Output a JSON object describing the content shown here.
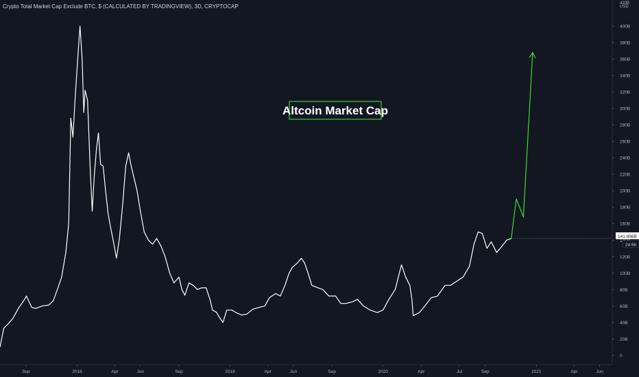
{
  "legend": "Crypto Total Market Cap Exclude BTC, $ (CALCULATED BY TRADINGVIEW), 3D, CRYPTOCAP",
  "colors": {
    "background": "#131722",
    "line": "#ffffff",
    "projection": "#3ccc2e",
    "title_border": "#3ccc2e",
    "axis_text": "#b2b5be"
  },
  "price_badge": {
    "value": "141.896B",
    "countdown": "2d 6h"
  },
  "chart_data": {
    "type": "line",
    "title": "Altcoin Market Cap",
    "ylabel": "USD",
    "ylim": [
      -8,
      420
    ],
    "y_top_partial_label": "420B",
    "y_ticks": [
      0,
      20,
      40,
      60,
      80,
      100,
      120,
      140,
      160,
      180,
      200,
      220,
      240,
      260,
      280,
      300,
      320,
      340,
      360,
      380,
      400
    ],
    "y_tick_labels": [
      "0",
      "20B",
      "40B",
      "60B",
      "80B",
      "100B",
      "120B",
      "140B",
      "160B",
      "180B",
      "200B",
      "220B",
      "240B",
      "260B",
      "280B",
      "300B",
      "320B",
      "340B",
      "360B",
      "380B",
      "400B"
    ],
    "x_ticks": [
      {
        "label": "Sep",
        "date": "2017-09-01"
      },
      {
        "label": "2018",
        "date": "2018-01-01"
      },
      {
        "label": "Apr",
        "date": "2018-04-01"
      },
      {
        "label": "Jun",
        "date": "2018-06-01"
      },
      {
        "label": "Sep",
        "date": "2018-09-01"
      },
      {
        "label": "2019",
        "date": "2019-01-01"
      },
      {
        "label": "Apr",
        "date": "2019-04-01"
      },
      {
        "label": "Jun",
        "date": "2019-06-01"
      },
      {
        "label": "Sep",
        "date": "2019-09-01"
      },
      {
        "label": "2020",
        "date": "2020-01-01"
      },
      {
        "label": "Apr",
        "date": "2020-04-01"
      },
      {
        "label": "Jul",
        "date": "2020-07-01"
      },
      {
        "label": "Sep",
        "date": "2020-09-01"
      },
      {
        "label": "2021",
        "date": "2021-01-01"
      },
      {
        "label": "Apr",
        "date": "2021-04-01"
      },
      {
        "label": "Jun",
        "date": "2021-06-01"
      }
    ],
    "xlim": [
      "2017-07-01",
      "2021-07-01"
    ],
    "series": [
      {
        "role": "history",
        "points": [
          [
            "2017-07-01",
            10
          ],
          [
            "2017-07-10",
            33
          ],
          [
            "2017-07-20",
            38
          ],
          [
            "2017-08-01",
            45
          ],
          [
            "2017-08-15",
            58
          ],
          [
            "2017-08-25",
            65
          ],
          [
            "2017-09-02",
            72
          ],
          [
            "2017-09-15",
            58
          ],
          [
            "2017-09-25",
            57
          ],
          [
            "2017-10-10",
            60
          ],
          [
            "2017-10-25",
            61
          ],
          [
            "2017-11-05",
            66
          ],
          [
            "2017-11-15",
            80
          ],
          [
            "2017-11-25",
            95
          ],
          [
            "2017-12-05",
            125
          ],
          [
            "2017-12-12",
            160
          ],
          [
            "2017-12-17",
            288
          ],
          [
            "2017-12-22",
            265
          ],
          [
            "2017-12-27",
            310
          ],
          [
            "2018-01-04",
            372
          ],
          [
            "2018-01-08",
            400
          ],
          [
            "2018-01-13",
            360
          ],
          [
            "2018-01-17",
            295
          ],
          [
            "2018-01-20",
            322
          ],
          [
            "2018-01-26",
            310
          ],
          [
            "2018-02-01",
            230
          ],
          [
            "2018-02-06",
            175
          ],
          [
            "2018-02-11",
            218
          ],
          [
            "2018-02-16",
            250
          ],
          [
            "2018-02-21",
            270
          ],
          [
            "2018-02-26",
            232
          ],
          [
            "2018-03-04",
            230
          ],
          [
            "2018-03-10",
            200
          ],
          [
            "2018-03-16",
            172
          ],
          [
            "2018-03-22",
            155
          ],
          [
            "2018-03-28",
            140
          ],
          [
            "2018-04-05",
            118
          ],
          [
            "2018-04-12",
            142
          ],
          [
            "2018-04-20",
            185
          ],
          [
            "2018-04-27",
            230
          ],
          [
            "2018-05-04",
            246
          ],
          [
            "2018-05-10",
            230
          ],
          [
            "2018-05-17",
            215
          ],
          [
            "2018-05-24",
            200
          ],
          [
            "2018-06-01",
            175
          ],
          [
            "2018-06-10",
            150
          ],
          [
            "2018-06-20",
            140
          ],
          [
            "2018-06-30",
            135
          ],
          [
            "2018-07-10",
            142
          ],
          [
            "2018-07-20",
            133
          ],
          [
            "2018-07-30",
            120
          ],
          [
            "2018-08-10",
            100
          ],
          [
            "2018-08-20",
            88
          ],
          [
            "2018-09-01",
            95
          ],
          [
            "2018-09-08",
            80
          ],
          [
            "2018-09-15",
            73
          ],
          [
            "2018-09-25",
            88
          ],
          [
            "2018-10-05",
            85
          ],
          [
            "2018-10-15",
            80
          ],
          [
            "2018-10-25",
            82
          ],
          [
            "2018-11-05",
            82
          ],
          [
            "2018-11-14",
            68
          ],
          [
            "2018-11-20",
            55
          ],
          [
            "2018-11-30",
            52
          ],
          [
            "2018-12-08",
            45
          ],
          [
            "2018-12-15",
            40
          ],
          [
            "2018-12-24",
            55
          ],
          [
            "2019-01-05",
            55
          ],
          [
            "2019-01-15",
            52
          ],
          [
            "2019-01-28",
            49
          ],
          [
            "2019-02-10",
            50
          ],
          [
            "2019-02-24",
            56
          ],
          [
            "2019-03-10",
            58
          ],
          [
            "2019-03-25",
            60
          ],
          [
            "2019-04-05",
            70
          ],
          [
            "2019-04-20",
            75
          ],
          [
            "2019-05-01",
            72
          ],
          [
            "2019-05-12",
            85
          ],
          [
            "2019-05-22",
            100
          ],
          [
            "2019-05-30",
            107
          ],
          [
            "2019-06-10",
            112
          ],
          [
            "2019-06-20",
            118
          ],
          [
            "2019-06-28",
            112
          ],
          [
            "2019-07-06",
            100
          ],
          [
            "2019-07-15",
            85
          ],
          [
            "2019-07-30",
            82
          ],
          [
            "2019-08-10",
            80
          ],
          [
            "2019-08-25",
            72
          ],
          [
            "2019-09-10",
            72
          ],
          [
            "2019-09-22",
            63
          ],
          [
            "2019-10-05",
            63
          ],
          [
            "2019-10-20",
            65
          ],
          [
            "2019-11-01",
            68
          ],
          [
            "2019-11-15",
            60
          ],
          [
            "2019-12-01",
            55
          ],
          [
            "2019-12-18",
            52
          ],
          [
            "2020-01-01",
            55
          ],
          [
            "2020-01-15",
            68
          ],
          [
            "2020-01-30",
            80
          ],
          [
            "2020-02-08",
            98
          ],
          [
            "2020-02-14",
            110
          ],
          [
            "2020-02-24",
            95
          ],
          [
            "2020-03-05",
            85
          ],
          [
            "2020-03-10",
            68
          ],
          [
            "2020-03-13",
            48
          ],
          [
            "2020-03-28",
            52
          ],
          [
            "2020-04-10",
            60
          ],
          [
            "2020-04-25",
            70
          ],
          [
            "2020-05-10",
            72
          ],
          [
            "2020-05-28",
            85
          ],
          [
            "2020-06-10",
            85
          ],
          [
            "2020-06-25",
            90
          ],
          [
            "2020-07-10",
            95
          ],
          [
            "2020-07-25",
            108
          ],
          [
            "2020-08-05",
            135
          ],
          [
            "2020-08-15",
            150
          ],
          [
            "2020-08-25",
            148
          ],
          [
            "2020-09-05",
            130
          ],
          [
            "2020-09-15",
            138
          ],
          [
            "2020-09-28",
            125
          ],
          [
            "2020-10-10",
            132
          ],
          [
            "2020-10-22",
            140
          ],
          [
            "2020-11-02",
            142
          ]
        ]
      },
      {
        "role": "projection",
        "points": [
          [
            "2020-11-02",
            142
          ],
          [
            "2020-11-14",
            190
          ],
          [
            "2020-12-01",
            168
          ],
          [
            "2020-12-23",
            368
          ]
        ]
      }
    ]
  }
}
